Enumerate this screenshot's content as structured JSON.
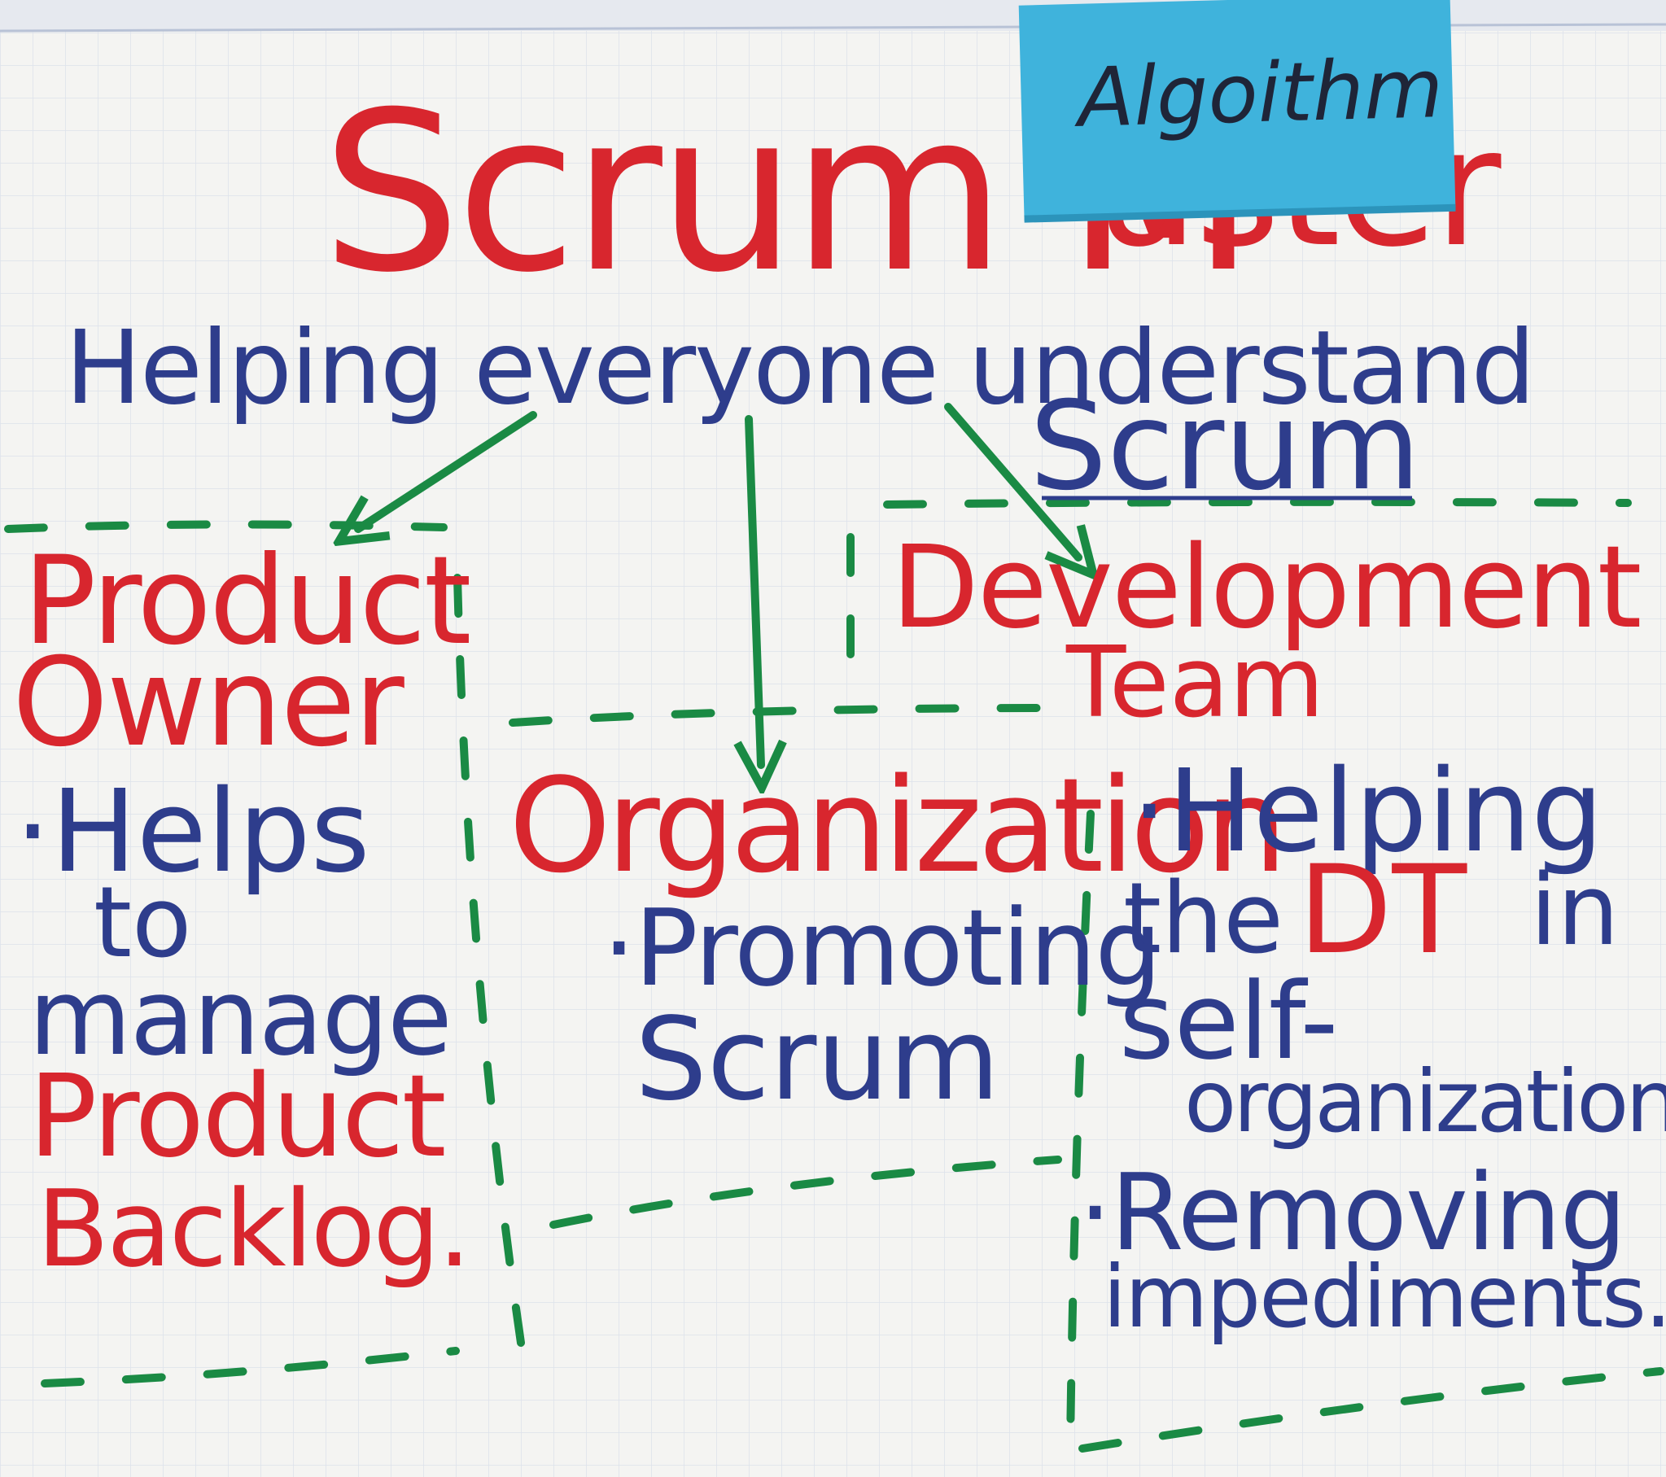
{
  "title_line": "Scrum M",
  "title_tail": "aster",
  "sticky_note": "Algoithm",
  "subtitle_line1": "Helping everyone understand",
  "subtitle_line2": "Scrum",
  "columns": {
    "product_owner": {
      "heading_line1": "Product",
      "heading_line2": "Owner",
      "lines": [
        {
          "text": "·Helps",
          "color": "blue"
        },
        {
          "text": "to",
          "color": "blue"
        },
        {
          "text": "manage",
          "color": "blue"
        },
        {
          "text": "Product",
          "color": "red"
        },
        {
          "text": "Backlog.",
          "color": "red"
        }
      ]
    },
    "organization": {
      "heading": "Organization",
      "lines": [
        {
          "text": "·Promoting",
          "color": "blue"
        },
        {
          "text": "Scrum",
          "color": "blue"
        }
      ]
    },
    "development_team": {
      "heading_line1": "Development",
      "heading_line2": "Team",
      "lines": [
        {
          "text": "·Helping",
          "color": "blue"
        },
        {
          "text": "the",
          "color": "blue"
        },
        {
          "text": "DT",
          "color": "red"
        },
        {
          "text": "in",
          "color": "blue"
        },
        {
          "text": "self-",
          "color": "blue"
        },
        {
          "text": "organization",
          "color": "blue"
        },
        {
          "text": "·Removing",
          "color": "blue"
        },
        {
          "text": "impediments.",
          "color": "blue"
        }
      ]
    }
  },
  "colors": {
    "paper": "#f4f4f2",
    "grid": "#c9d3e6",
    "red_marker": "#d8262e",
    "blue_marker": "#2e3d8c",
    "green_marker": "#1a8a44",
    "sticky": "#3fb3dc",
    "sticky_ink": "#1f2538"
  }
}
